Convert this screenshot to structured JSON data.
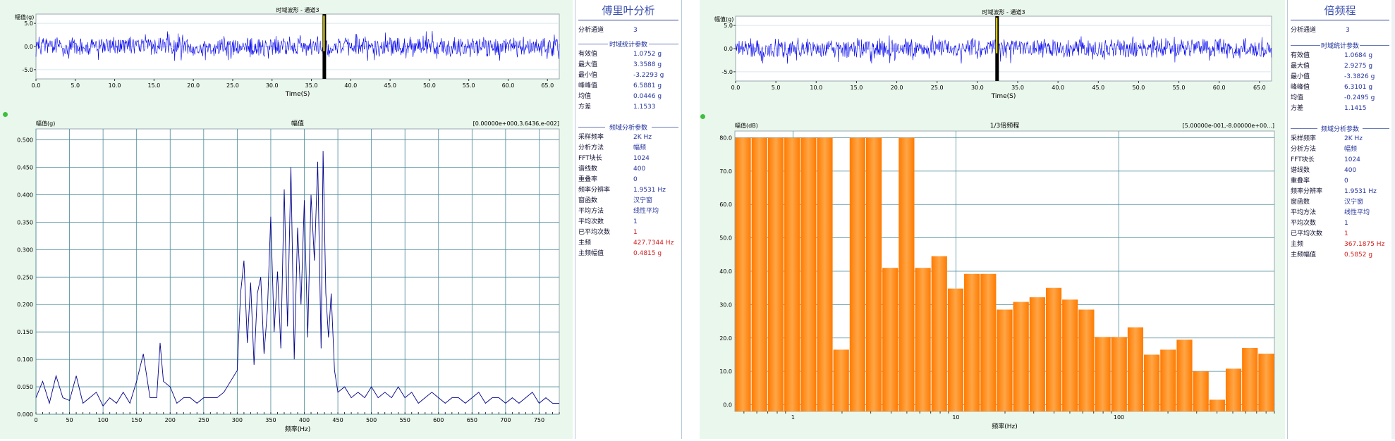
{
  "left": {
    "wave": {
      "title": "时域波形 - 通道3",
      "ylabel": "幅值(g)",
      "xlabel": "Time(S)",
      "xticks": [
        "0.0",
        "5.0",
        "10.0",
        "15.0",
        "20.0",
        "25.0",
        "30.0",
        "35.0",
        "40.0",
        "45.0",
        "50.0",
        "55.0",
        "60.0",
        "65.0"
      ],
      "yticks": [
        "5.0",
        "0.0",
        "-5.0"
      ],
      "cursor_time": 36.6
    },
    "spectrum": {
      "title": "幅值",
      "ylabel": "幅值(g)",
      "xlabel": "频率(Hz)",
      "range_label": "[0.00000e+000,3.6436,e-002]",
      "yticks": [
        "0.500",
        "0.450",
        "0.400",
        "0.350",
        "0.300",
        "0.250",
        "0.200",
        "0.150",
        "0.100",
        "0.050",
        "0.000"
      ],
      "xticks": [
        "0",
        "50",
        "100",
        "150",
        "200",
        "250",
        "300",
        "350",
        "400",
        "450",
        "500",
        "550",
        "600",
        "650",
        "700",
        "750"
      ]
    },
    "panel": {
      "title": "傅里叶分析",
      "channel_label": "分析通道",
      "channel_value": "3",
      "stats_title": "时域统计参数",
      "stats": [
        {
          "label": "有效值",
          "value": "1.0752 g"
        },
        {
          "label": "最大值",
          "value": "3.3588 g"
        },
        {
          "label": "最小值",
          "value": "-3.2293 g"
        },
        {
          "label": "峰峰值",
          "value": "6.5881 g"
        },
        {
          "label": "均值",
          "value": "0.0446 g"
        },
        {
          "label": "方差",
          "value": "1.1533"
        }
      ],
      "params_title": "频域分析参数",
      "params": [
        {
          "label": "采样频率",
          "value": "2K Hz",
          "red": false
        },
        {
          "label": "分析方法",
          "value": "幅频",
          "red": false
        },
        {
          "label": "FFT块长",
          "value": "1024",
          "red": false
        },
        {
          "label": "谱线数",
          "value": "400",
          "red": false
        },
        {
          "label": "重叠率",
          "value": "0",
          "red": false
        },
        {
          "label": "频率分辨率",
          "value": "1.9531 Hz",
          "red": false
        },
        {
          "label": "窗函数",
          "value": "汉宁窗",
          "red": false
        },
        {
          "label": "平均方法",
          "value": "线性平均",
          "red": false
        },
        {
          "label": "平均次数",
          "value": "1",
          "red": false
        },
        {
          "label": "已平均次数",
          "value": "1",
          "red": true
        },
        {
          "label": "主频",
          "value": "427.7344 Hz",
          "red": true
        },
        {
          "label": "主频幅值",
          "value": "0.4815 g",
          "red": true
        }
      ]
    }
  },
  "right": {
    "wave": {
      "title": "时域波形 - 通道3",
      "ylabel": "幅值(g)",
      "xlabel": "Time(S)",
      "xticks": [
        "0.0",
        "5.0",
        "10.0",
        "15.0",
        "20.0",
        "25.0",
        "30.0",
        "35.0",
        "40.0",
        "45.0",
        "50.0",
        "55.0",
        "60.0",
        "65.0"
      ],
      "yticks": [
        "5.0",
        "0.0",
        "-5.0"
      ],
      "cursor_time": 32.4
    },
    "octave": {
      "title": "1/3倍频程",
      "ylabel": "幅值(dB)",
      "xlabel": "频率(Hz)",
      "range_label": "[5.00000e-001,-8.00000e+00...]",
      "yticks": [
        "80.0",
        "70.0",
        "60.0",
        "50.0",
        "40.0",
        "30.0",
        "20.0",
        "10.0",
        "0.0"
      ],
      "xticks": [
        "1",
        "10",
        "100"
      ]
    },
    "panel": {
      "title": "倍频程",
      "channel_label": "分析通道",
      "channel_value": "3",
      "stats_title": "时域统计参数",
      "stats": [
        {
          "label": "有效值",
          "value": "1.0684 g"
        },
        {
          "label": "最大值",
          "value": "2.9275 g"
        },
        {
          "label": "最小值",
          "value": "-3.3826 g"
        },
        {
          "label": "峰峰值",
          "value": "6.3101 g"
        },
        {
          "label": "均值",
          "value": "-0.2495 g"
        },
        {
          "label": "方差",
          "value": "1.1415"
        }
      ],
      "params_title": "频域分析参数",
      "params": [
        {
          "label": "采样频率",
          "value": "2K Hz",
          "red": false
        },
        {
          "label": "分析方法",
          "value": "幅频",
          "red": false
        },
        {
          "label": "FFT块长",
          "value": "1024",
          "red": false
        },
        {
          "label": "谱线数",
          "value": "400",
          "red": false
        },
        {
          "label": "重叠率",
          "value": "0",
          "red": false
        },
        {
          "label": "频率分辨率",
          "value": "1.9531 Hz",
          "red": false
        },
        {
          "label": "窗函数",
          "value": "汉宁窗",
          "red": false
        },
        {
          "label": "平均方法",
          "value": "线性平均",
          "red": false
        },
        {
          "label": "平均次数",
          "value": "1",
          "red": false
        },
        {
          "label": "已平均次数",
          "value": "1",
          "red": true
        },
        {
          "label": "主频",
          "value": "367.1875 Hz",
          "red": true
        },
        {
          "label": "主频幅值",
          "value": "0.5852 g",
          "red": true
        }
      ]
    }
  },
  "chart_data": [
    {
      "type": "line",
      "title": "时域波形 - 通道3",
      "xlabel": "Time(S)",
      "ylabel": "幅值(g)",
      "xlim": [
        0,
        66.5
      ],
      "ylim": [
        -7,
        7
      ],
      "amplitude_range": [
        -3.2293,
        3.3588
      ],
      "series": [
        {
          "color": "#0000ee"
        }
      ]
    },
    {
      "type": "line",
      "title": "幅值",
      "xlabel": "频率(Hz)",
      "ylabel": "幅值(g)",
      "xlim": [
        0,
        780
      ],
      "ylim": [
        0,
        0.52
      ],
      "series": [
        {
          "color": "#00008b",
          "x": [
            0,
            10,
            20,
            30,
            40,
            50,
            60,
            70,
            80,
            90,
            100,
            110,
            120,
            130,
            140,
            150,
            160,
            170,
            180,
            185,
            190,
            200,
            210,
            220,
            230,
            240,
            250,
            260,
            270,
            280,
            290,
            300,
            305,
            310,
            315,
            320,
            325,
            330,
            335,
            340,
            345,
            350,
            355,
            360,
            365,
            370,
            375,
            380,
            385,
            390,
            395,
            400,
            405,
            410,
            415,
            420,
            425,
            428,
            432,
            436,
            440,
            445,
            450,
            460,
            470,
            480,
            490,
            500,
            510,
            520,
            530,
            540,
            550,
            560,
            570,
            580,
            590,
            600,
            610,
            620,
            630,
            640,
            650,
            660,
            670,
            680,
            690,
            700,
            710,
            720,
            730,
            740,
            750,
            760,
            770,
            780
          ],
          "values": [
            0.03,
            0.06,
            0.02,
            0.07,
            0.03,
            0.025,
            0.07,
            0.02,
            0.03,
            0.04,
            0.015,
            0.03,
            0.02,
            0.04,
            0.02,
            0.06,
            0.11,
            0.03,
            0.03,
            0.13,
            0.06,
            0.05,
            0.02,
            0.03,
            0.03,
            0.02,
            0.03,
            0.03,
            0.03,
            0.04,
            0.06,
            0.08,
            0.22,
            0.28,
            0.13,
            0.24,
            0.09,
            0.22,
            0.25,
            0.11,
            0.19,
            0.36,
            0.15,
            0.26,
            0.12,
            0.41,
            0.16,
            0.45,
            0.1,
            0.34,
            0.2,
            0.39,
            0.14,
            0.4,
            0.28,
            0.46,
            0.12,
            0.48,
            0.22,
            0.14,
            0.22,
            0.08,
            0.04,
            0.05,
            0.03,
            0.04,
            0.03,
            0.05,
            0.03,
            0.04,
            0.03,
            0.05,
            0.03,
            0.04,
            0.02,
            0.03,
            0.04,
            0.03,
            0.02,
            0.03,
            0.03,
            0.02,
            0.03,
            0.04,
            0.02,
            0.03,
            0.03,
            0.02,
            0.03,
            0.02,
            0.03,
            0.04,
            0.02,
            0.03,
            0.02,
            0.02
          ]
        }
      ]
    },
    {
      "type": "line",
      "title": "时域波形 - 通道3",
      "xlabel": "Time(S)",
      "ylabel": "幅值(g)",
      "xlim": [
        0,
        66.5
      ],
      "ylim": [
        -7,
        7
      ],
      "amplitude_range": [
        -3.3826,
        2.9275
      ],
      "series": [
        {
          "color": "#0000ee"
        }
      ]
    },
    {
      "type": "bar",
      "title": "1/3倍频程",
      "xlabel": "频率(Hz)",
      "ylabel": "幅值(dB)",
      "xscale": "log",
      "ylim": [
        -2,
        82
      ],
      "categories": [
        "0.5",
        "0.63",
        "0.8",
        "1",
        "1.25",
        "1.6",
        "2",
        "2.5",
        "3.15",
        "4",
        "5",
        "6.3",
        "8",
        "10",
        "12.5",
        "16",
        "20",
        "25",
        "31.5",
        "40",
        "50",
        "63",
        "80",
        "100",
        "125",
        "160",
        "200",
        "250",
        "315",
        "400",
        "500",
        "630",
        "800"
      ],
      "values": [
        80,
        80,
        80,
        80,
        80,
        80,
        16.5,
        80,
        80,
        41,
        80,
        41,
        44.5,
        34.8,
        39.2,
        39.2,
        28.5,
        30.8,
        32.2,
        35,
        31.5,
        28.5,
        20.3,
        20.3,
        23.2,
        15,
        16.5,
        19.5,
        10,
        1.5,
        10.8,
        17,
        15.3
      ],
      "series": [
        {
          "color": "#ff8c1a"
        }
      ]
    }
  ]
}
